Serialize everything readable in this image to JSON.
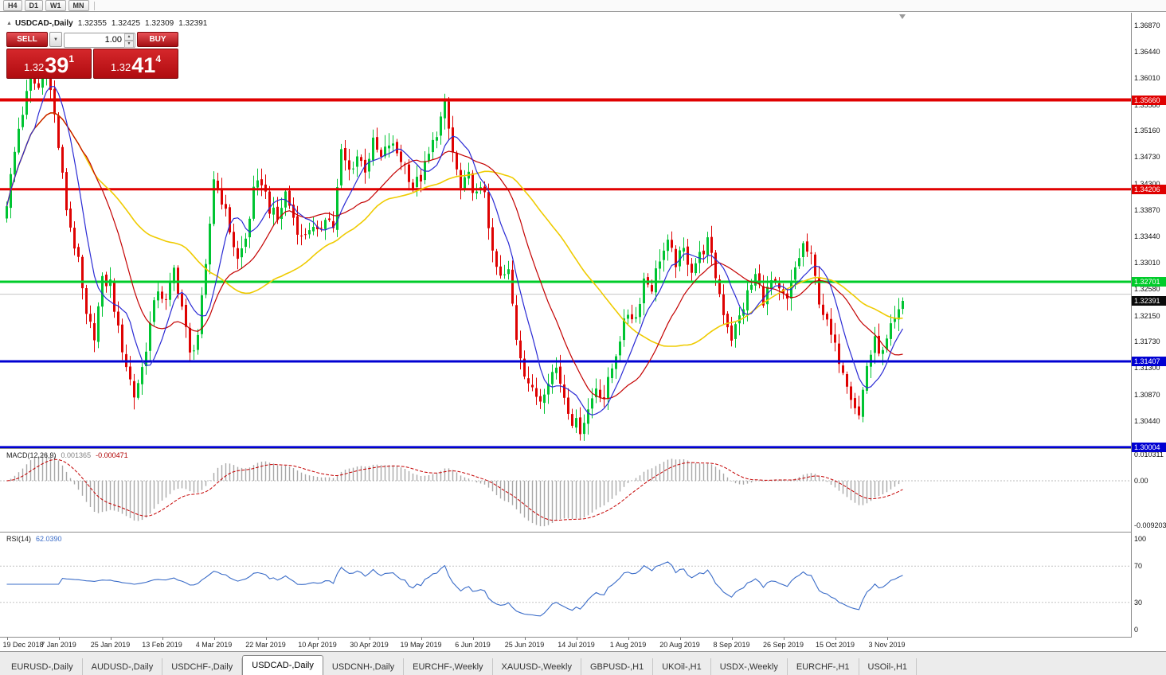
{
  "window": {
    "toolbar_timeframes": [
      "H4",
      "D1",
      "W1",
      "MN"
    ]
  },
  "icons": {
    "collapse": "▲",
    "dropdown": "▼",
    "spin_up": "▲",
    "spin_down": "▼"
  },
  "chart": {
    "title": "USDCAD-,Daily",
    "ohlc": {
      "open": "1.32355",
      "high": "1.32425",
      "low": "1.32309",
      "close": "1.32391"
    },
    "one_click": {
      "sell_label": "SELL",
      "buy_label": "BUY",
      "volume": "1.00",
      "sell_small": "1.32",
      "sell_big": "39",
      "sell_sup": "1",
      "buy_small": "1.32",
      "buy_big": "41",
      "buy_sup": "4"
    },
    "price_scale": [
      "1.36870",
      "1.36440",
      "1.36010",
      "1.35580",
      "1.35160",
      "1.34730",
      "1.34300",
      "1.33870",
      "1.33440",
      "1.33010",
      "1.32580",
      "1.32150",
      "1.31730",
      "1.31300",
      "1.30870",
      "1.30440"
    ],
    "levels": [
      {
        "price": 1.3566,
        "label": "1.35660",
        "color": "#e00000",
        "width": 4
      },
      {
        "price": 1.34206,
        "label": "1.34206",
        "color": "#e00000",
        "width": 3
      },
      {
        "price": 1.32701,
        "label": "1.32701",
        "color": "#00cc2a",
        "width": 3
      },
      {
        "price": 1.31407,
        "label": "1.31407",
        "color": "#0000d2",
        "width": 3
      },
      {
        "price": 1.30004,
        "label": "1.30004",
        "color": "#0000d2",
        "width": 4
      }
    ],
    "current_price": 1.32391,
    "current_price_label": "1.32391",
    "gray_line_price": 1.325
  },
  "macd": {
    "name": "MACD(12,26,9)",
    "value_main": "0.001365",
    "value_signal": "-0.000471",
    "scale_top": "0.010311",
    "scale_zero": "0.00",
    "scale_bottom": "-0.009203"
  },
  "rsi": {
    "name": "RSI(14)",
    "value": "62.0390",
    "scale": [
      "100",
      "70",
      "30",
      "0"
    ],
    "levels": [
      70,
      30
    ]
  },
  "dates": [
    {
      "i": 0,
      "label": "19 Dec 2018"
    },
    {
      "i": 13,
      "label": "7 Jan 2019"
    },
    {
      "i": 26,
      "label": "25 Jan 2019"
    },
    {
      "i": 39,
      "label": "13 Feb 2019"
    },
    {
      "i": 52,
      "label": "4 Mar 2019"
    },
    {
      "i": 65,
      "label": "22 Mar 2019"
    },
    {
      "i": 78,
      "label": "10 Apr 2019"
    },
    {
      "i": 91,
      "label": "30 Apr 2019"
    },
    {
      "i": 104,
      "label": "19 May 2019"
    },
    {
      "i": 117,
      "label": "6 Jun 2019"
    },
    {
      "i": 130,
      "label": "25 Jun 2019"
    },
    {
      "i": 143,
      "label": "14 Jul 2019"
    },
    {
      "i": 156,
      "label": "1 Aug 2019"
    },
    {
      "i": 169,
      "label": "20 Aug 2019"
    },
    {
      "i": 182,
      "label": "8 Sep 2019"
    },
    {
      "i": 195,
      "label": "26 Sep 2019"
    },
    {
      "i": 208,
      "label": "15 Oct 2019"
    },
    {
      "i": 221,
      "label": "3 Nov 2019"
    }
  ],
  "tabs": {
    "active": "USDCAD-,Daily",
    "items": [
      "EURUSD-,Daily",
      "AUDUSD-,Daily",
      "USDCHF-,Daily",
      "USDCAD-,Daily",
      "USDCNH-,Daily",
      "EURCHF-,Weekly",
      "XAUUSD-,Weekly",
      "GBPUSD-,H1",
      "UKOil-,H1",
      "USDX-,Weekly",
      "EURCHF-,H1",
      "USOil-,H1"
    ]
  },
  "theme": {
    "up": "#00c432",
    "down": "#de0202",
    "ma_fast": "#2a2ad4",
    "ma_mid": "#c40000",
    "ma_slow": "#efcb00",
    "rsi_line": "#3a6cc8",
    "macd_hist": "#a8a8a8",
    "macd_signal": "#c40000",
    "trade_red": "#c3080c"
  },
  "chart_data": {
    "type": "candlestick",
    "symbol": "USDCAD",
    "timeframe": "Daily",
    "count": 226,
    "last_close": 1.32391,
    "visible_range": {
      "high": 1.3689,
      "low": 1.2999
    },
    "keyframes": [
      [
        0,
        1.34
      ],
      [
        3,
        1.352
      ],
      [
        6,
        1.36
      ],
      [
        8,
        1.3585
      ],
      [
        10,
        1.362
      ],
      [
        12,
        1.354
      ],
      [
        15,
        1.339
      ],
      [
        18,
        1.33
      ],
      [
        20,
        1.321
      ],
      [
        22,
        1.3185
      ],
      [
        24,
        1.327
      ],
      [
        26,
        1.3268
      ],
      [
        28,
        1.319
      ],
      [
        30,
        1.3135
      ],
      [
        32,
        1.3085
      ],
      [
        34,
        1.313
      ],
      [
        36,
        1.32
      ],
      [
        38,
        1.326
      ],
      [
        40,
        1.3235
      ],
      [
        42,
        1.329
      ],
      [
        44,
        1.323
      ],
      [
        46,
        1.315
      ],
      [
        48,
        1.3185
      ],
      [
        50,
        1.329
      ],
      [
        52,
        1.344
      ],
      [
        54,
        1.3405
      ],
      [
        56,
        1.3355
      ],
      [
        58,
        1.3305
      ],
      [
        60,
        1.334
      ],
      [
        62,
        1.3415
      ],
      [
        64,
        1.3435
      ],
      [
        66,
        1.339
      ],
      [
        68,
        1.337
      ],
      [
        70,
        1.3415
      ],
      [
        72,
        1.3375
      ],
      [
        74,
        1.334
      ],
      [
        76,
        1.336
      ],
      [
        78,
        1.3345
      ],
      [
        80,
        1.338
      ],
      [
        82,
        1.336
      ],
      [
        84,
        1.348
      ],
      [
        86,
        1.345
      ],
      [
        88,
        1.3475
      ],
      [
        90,
        1.3455
      ],
      [
        92,
        1.3495
      ],
      [
        94,
        1.347
      ],
      [
        96,
        1.3495
      ],
      [
        98,
        1.348
      ],
      [
        100,
        1.346
      ],
      [
        102,
        1.3425
      ],
      [
        104,
        1.344
      ],
      [
        106,
        1.3475
      ],
      [
        108,
        1.3515
      ],
      [
        110,
        1.3555
      ],
      [
        112,
        1.348
      ],
      [
        114,
        1.342
      ],
      [
        116,
        1.344
      ],
      [
        118,
        1.341
      ],
      [
        120,
        1.342
      ],
      [
        122,
        1.331
      ],
      [
        124,
        1.3275
      ],
      [
        126,
        1.3285
      ],
      [
        128,
        1.318
      ],
      [
        130,
        1.3125
      ],
      [
        132,
        1.309
      ],
      [
        134,
        1.308
      ],
      [
        136,
        1.3115
      ],
      [
        138,
        1.313
      ],
      [
        140,
        1.3085
      ],
      [
        142,
        1.3045
      ],
      [
        144,
        1.3032
      ],
      [
        146,
        1.3062
      ],
      [
        148,
        1.31
      ],
      [
        150,
        1.3082
      ],
      [
        152,
        1.313
      ],
      [
        154,
        1.318
      ],
      [
        156,
        1.322
      ],
      [
        158,
        1.3212
      ],
      [
        160,
        1.3275
      ],
      [
        162,
        1.3262
      ],
      [
        164,
        1.331
      ],
      [
        166,
        1.333
      ],
      [
        168,
        1.3302
      ],
      [
        170,
        1.332
      ],
      [
        172,
        1.3292
      ],
      [
        174,
        1.3312
      ],
      [
        176,
        1.3335
      ],
      [
        178,
        1.328
      ],
      [
        180,
        1.3222
      ],
      [
        182,
        1.318
      ],
      [
        184,
        1.3212
      ],
      [
        186,
        1.325
      ],
      [
        188,
        1.328
      ],
      [
        190,
        1.3242
      ],
      [
        192,
        1.327
      ],
      [
        194,
        1.3252
      ],
      [
        196,
        1.3238
      ],
      [
        198,
        1.3292
      ],
      [
        200,
        1.333
      ],
      [
        202,
        1.3308
      ],
      [
        204,
        1.3242
      ],
      [
        206,
        1.32
      ],
      [
        208,
        1.3162
      ],
      [
        210,
        1.313
      ],
      [
        212,
        1.3088
      ],
      [
        214,
        1.3052
      ],
      [
        216,
        1.3135
      ],
      [
        218,
        1.3172
      ],
      [
        220,
        1.3152
      ],
      [
        222,
        1.3192
      ],
      [
        224,
        1.3218
      ],
      [
        225,
        1.32391
      ]
    ],
    "indicators": [
      "MACD(12,26,9)",
      "RSI(14)",
      "MA-fast-blue",
      "MA-mid-red",
      "MA-slow-yellow"
    ]
  }
}
